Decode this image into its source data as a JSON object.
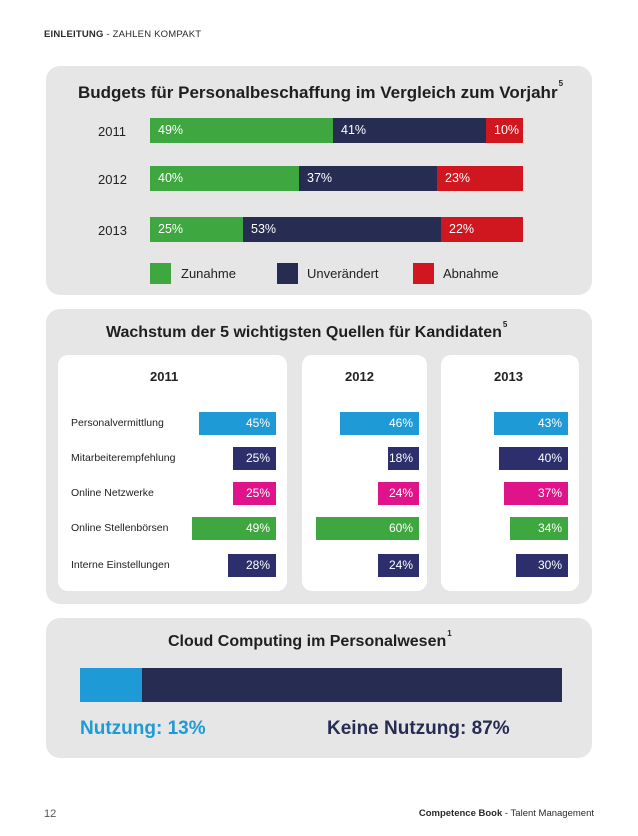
{
  "header": {
    "section": "EINLEITUNG",
    "separator": " - ",
    "subsection": "ZAHLEN KOMPAKT"
  },
  "chart_data": [
    {
      "type": "bar",
      "orientation": "horizontal-stacked-percent",
      "title": "Budgets für Personalbeschaffung im Vergleich zum Vorjahr",
      "footnote": "5",
      "categories": [
        "2011",
        "2012",
        "2013"
      ],
      "series": [
        {
          "name": "Zunahme",
          "color": "#3fa73f",
          "values": [
            49,
            40,
            25
          ],
          "labels": [
            "49%",
            "40%",
            "25%"
          ]
        },
        {
          "name": "Unverändert",
          "color": "#272d52",
          "values": [
            41,
            37,
            53
          ],
          "labels": [
            "41%",
            "37%",
            "53%"
          ]
        },
        {
          "name": "Abnahme",
          "color": "#d0171f",
          "values": [
            10,
            23,
            22
          ],
          "labels": [
            "10%",
            "23%",
            "22%"
          ]
        }
      ]
    },
    {
      "type": "bar",
      "orientation": "horizontal",
      "title": "Wachstum der 5 wichtigsten Quellen für Kandidaten",
      "footnote": "5",
      "categories": [
        "Personalvermittlung",
        "Mitarbeiterempfehlung",
        "Online Netzwerke",
        "Online Stellenbörsen",
        "Interne Einstellungen"
      ],
      "colors": [
        "#1e9ad6",
        "#2c2f6b",
        "#e0148a",
        "#3fa73f",
        "#2c2f6b"
      ],
      "series": [
        {
          "name": "2011",
          "values": [
            45,
            25,
            25,
            49,
            28
          ],
          "labels": [
            "45%",
            "25%",
            "25%",
            "49%",
            "28%"
          ]
        },
        {
          "name": "2012",
          "values": [
            46,
            18,
            24,
            60,
            24
          ],
          "labels": [
            "46%",
            "18%",
            "24%",
            "60%",
            "24%"
          ]
        },
        {
          "name": "2013",
          "values": [
            43,
            40,
            37,
            34,
            30
          ],
          "labels": [
            "43%",
            "40%",
            "37%",
            "34%",
            "30%"
          ]
        }
      ]
    },
    {
      "type": "bar",
      "orientation": "horizontal-stacked-percent",
      "title": "Cloud Computing im Personalwesen",
      "footnote": "1",
      "series": [
        {
          "name": "Nutzung",
          "value": 13,
          "color": "#1e9ad6",
          "label": "Nutzung: 13%"
        },
        {
          "name": "Keine Nutzung",
          "value": 87,
          "color": "#272d52",
          "label": "Keine Nutzung: 87%"
        }
      ]
    }
  ],
  "footer": {
    "page_number": "12",
    "book": "Competence Book",
    "separator": " - ",
    "topic": "Talent Management"
  }
}
